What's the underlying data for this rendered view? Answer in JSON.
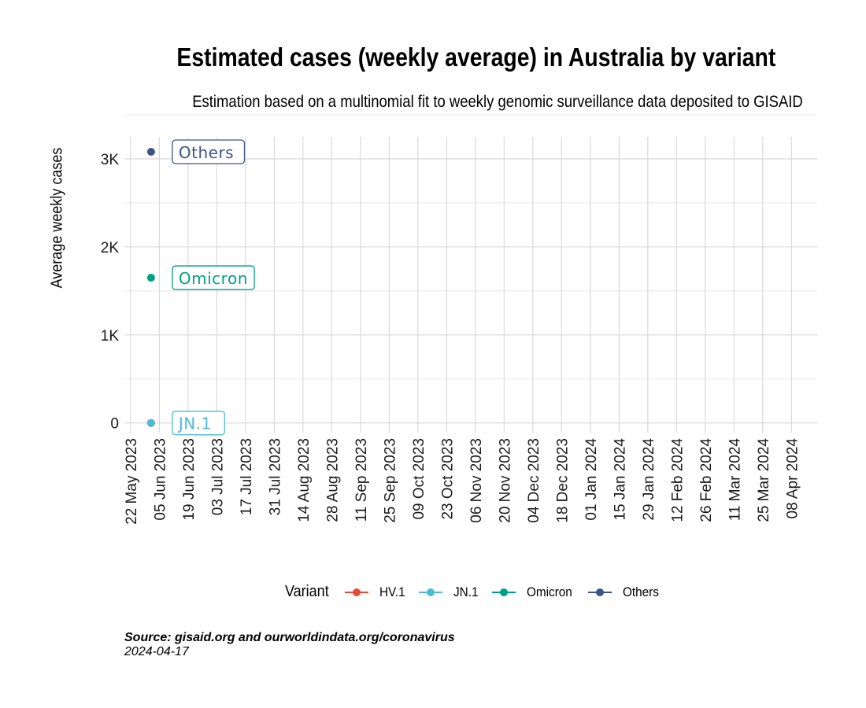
{
  "title": "Estimated cases (weekly average) in Australia by variant",
  "subtitle": "Estimation based on a multinomial fit to weekly genomic surveillance data deposited to GISAID",
  "caption": {
    "source": "Source: gisaid.org and ourworldindata.org/coronavirus",
    "date": "2024-04-17"
  },
  "legend": {
    "title": "Variant",
    "position": "bottom",
    "items": [
      {
        "label": "HV.1",
        "color": "#e64b35"
      },
      {
        "label": "JN.1",
        "color": "#4dbbd5"
      },
      {
        "label": "Omicron",
        "color": "#00a087"
      },
      {
        "label": "Others",
        "color": "#3c5488"
      }
    ]
  },
  "chart_data": {
    "type": "line",
    "title": "Estimated cases (weekly average) in Australia by variant",
    "subtitle": "Estimation based on a multinomial fit to weekly genomic surveillance data deposited to GISAID",
    "xlabel": "",
    "ylabel": "Average weekly cases",
    "grid": true,
    "x_ticks": [
      "22 May 2023",
      "05 Jun 2023",
      "19 Jun 2023",
      "03 Jul 2023",
      "17 Jul 2023",
      "31 Jul 2023",
      "14 Aug 2023",
      "28 Aug 2023",
      "11 Sep 2023",
      "25 Sep 2023",
      "09 Oct 2023",
      "23 Oct 2023",
      "06 Nov 2023",
      "20 Nov 2023",
      "04 Dec 2023",
      "18 Dec 2023",
      "01 Jan 2024",
      "15 Jan 2024",
      "29 Jan 2024",
      "12 Feb 2024",
      "26 Feb 2024",
      "11 Mar 2024",
      "25 Mar 2024",
      "08 Apr 2024"
    ],
    "xlim": [
      "2023-05-19",
      "2024-04-08"
    ],
    "y_ticks": [
      {
        "value": 0,
        "label": "0"
      },
      {
        "value": 1000,
        "label": "1K"
      },
      {
        "value": 2000,
        "label": "2K"
      },
      {
        "value": 3000,
        "label": "3K"
      }
    ],
    "ylim": [
      -110,
      3250
    ],
    "series": [
      {
        "name": "HV.1",
        "color": "#e64b35",
        "points": [
          {
            "x": "2023-06-01",
            "y": 0
          }
        ],
        "label": ""
      },
      {
        "name": "JN.1",
        "color": "#4dbbd5",
        "points": [
          {
            "x": "2023-06-01",
            "y": 0
          }
        ],
        "label": "JN.1"
      },
      {
        "name": "Omicron",
        "color": "#00a087",
        "points": [
          {
            "x": "2023-06-01",
            "y": 1650
          }
        ],
        "label": "Omicron"
      },
      {
        "name": "Others",
        "color": "#3c5488",
        "points": [
          {
            "x": "2023-06-01",
            "y": 3080
          }
        ],
        "label": "Others"
      }
    ]
  }
}
